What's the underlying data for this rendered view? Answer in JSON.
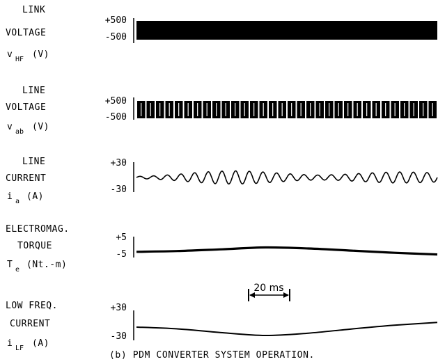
{
  "figure_caption": "(b) PDM CONVERTER SYSTEM OPERATION.",
  "time_scale": {
    "label": "20 ms",
    "duration_ms": 20
  },
  "chart_data": [
    {
      "type": "line",
      "label_lines": [
        "LINK",
        "VOLTAGE"
      ],
      "symbol": "v",
      "subscript": "HF",
      "unit": "(V)",
      "ylim": [
        -500,
        500
      ],
      "ticks": [
        "+500",
        "-500"
      ],
      "waveform": "high-frequency square wave (solid envelope)",
      "x": [
        0,
        140
      ],
      "y_min": [
        -500,
        -500
      ],
      "y_max": [
        500,
        500
      ]
    },
    {
      "type": "line",
      "label_lines": [
        "LINE",
        "VOLTAGE"
      ],
      "symbol": "v",
      "subscript": "ab",
      "unit": "(V)",
      "ylim": [
        -500,
        500
      ],
      "ticks": [
        "+500",
        "-500"
      ],
      "waveform": "pulse-density modulated blocks",
      "blocks_visible": 32,
      "amplitude": 500
    },
    {
      "type": "line",
      "label_lines": [
        "LINE",
        "CURRENT"
      ],
      "symbol": "i",
      "subscript": "a",
      "unit": "(A)",
      "ylim": [
        -30,
        30
      ],
      "ticks": [
        "+30",
        "-30"
      ],
      "waveform": "sinusoid, amplitude modulated",
      "cycles_visible": 22,
      "amplitude": [
        3,
        5,
        9,
        14,
        18,
        19,
        17,
        13,
        9,
        7,
        8,
        11,
        14,
        16,
        15,
        13
      ]
    },
    {
      "type": "line",
      "label_lines": [
        "ELECTROMAG.",
        "TORQUE"
      ],
      "symbol": "T",
      "subscript": "e",
      "unit": "(Nt.-m)",
      "ylim": [
        -5,
        5
      ],
      "ticks": [
        "+5",
        "-5"
      ],
      "x": [
        0,
        20,
        40,
        60,
        80,
        100,
        120,
        140
      ],
      "y": [
        -2.4,
        -1.9,
        -0.9,
        0.2,
        -0.4,
        -1.7,
        -3.0,
        -4.0
      ]
    },
    {
      "type": "line",
      "label_lines": [
        "LOW FREQ.",
        "CURRENT"
      ],
      "symbol": "i",
      "subscript": "LF",
      "unit": "(A)",
      "ylim": [
        -30,
        30
      ],
      "ticks": [
        "+30",
        "-30"
      ],
      "x": [
        0,
        20,
        40,
        60,
        80,
        100,
        120,
        140
      ],
      "y": [
        -6,
        -10,
        -18,
        -24,
        -19,
        -10,
        -2,
        4
      ]
    }
  ]
}
